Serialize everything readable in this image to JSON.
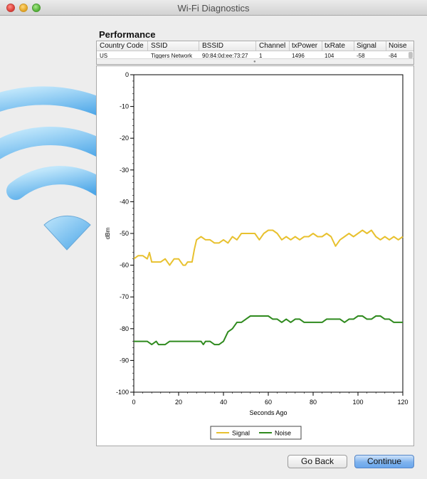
{
  "window": {
    "title": "Wi-Fi Diagnostics"
  },
  "icons": {
    "close": "close-window-icon",
    "minimize": "minimize-window-icon",
    "zoom": "zoom-window-icon",
    "logo": "wifi-icon"
  },
  "section": {
    "title": "Performance"
  },
  "table": {
    "columns": [
      "Country Code",
      "SSID",
      "BSSID",
      "Channel",
      "txPower",
      "txRate",
      "Signal",
      "Noise"
    ],
    "rows": [
      [
        "US",
        "Tiggers Network",
        "90:84:0d:ee:73:27",
        "1",
        "1496",
        "104",
        "-58",
        "-84"
      ]
    ]
  },
  "chart_data": {
    "type": "line",
    "xlabel": "Seconds Ago",
    "ylabel": "dBm",
    "xlim": [
      0,
      120
    ],
    "ylim": [
      -100,
      0
    ],
    "xticks": [
      "0",
      "20",
      "40",
      "60",
      "80",
      "100",
      "120"
    ],
    "yticks": [
      "0",
      "-10",
      "-20",
      "-30",
      "-40",
      "-50",
      "-60",
      "-70",
      "-80",
      "-90",
      "-100"
    ],
    "legend": "bottom-center",
    "series": [
      {
        "name": "Signal",
        "color": "#e8c12f",
        "x": [
          0,
          2,
          4,
          6,
          7,
          8,
          10,
          12,
          14,
          16,
          17,
          18,
          20,
          22,
          23,
          24,
          26,
          27,
          28,
          30,
          32,
          34,
          36,
          38,
          40,
          42,
          44,
          46,
          48,
          50,
          52,
          54,
          56,
          58,
          60,
          62,
          64,
          66,
          68,
          70,
          72,
          74,
          76,
          78,
          80,
          82,
          84,
          86,
          88,
          90,
          92,
          94,
          96,
          98,
          100,
          102,
          104,
          106,
          108,
          110,
          112,
          114,
          116,
          118,
          120
        ],
        "y": [
          -58,
          -57,
          -57,
          -58,
          -56,
          -59,
          -59,
          -59,
          -58,
          -60,
          -59,
          -58,
          -58,
          -60,
          -60,
          -59,
          -59,
          -55,
          -52,
          -51,
          -52,
          -52,
          -53,
          -53,
          -52,
          -53,
          -51,
          -52,
          -50,
          -50,
          -50,
          -50,
          -52,
          -50,
          -49,
          -49,
          -50,
          -52,
          -51,
          -52,
          -51,
          -52,
          -51,
          -51,
          -50,
          -51,
          -51,
          -50,
          -51,
          -54,
          -52,
          -51,
          -50,
          -51,
          -50,
          -49,
          -50,
          -49,
          -51,
          -52,
          -51,
          -52,
          -51,
          -52,
          -51
        ]
      },
      {
        "name": "Noise",
        "color": "#2f8a1e",
        "x": [
          0,
          2,
          4,
          6,
          8,
          10,
          11,
          12,
          14,
          16,
          18,
          20,
          22,
          24,
          26,
          28,
          30,
          31,
          32,
          34,
          36,
          38,
          40,
          42,
          44,
          46,
          48,
          50,
          52,
          54,
          56,
          58,
          60,
          62,
          64,
          66,
          68,
          70,
          72,
          74,
          76,
          78,
          80,
          82,
          84,
          86,
          88,
          90,
          92,
          94,
          96,
          98,
          100,
          102,
          104,
          106,
          108,
          110,
          112,
          114,
          116,
          118,
          120
        ],
        "y": [
          -84,
          -84,
          -84,
          -84,
          -85,
          -84,
          -85,
          -85,
          -85,
          -84,
          -84,
          -84,
          -84,
          -84,
          -84,
          -84,
          -84,
          -85,
          -84,
          -84,
          -85,
          -85,
          -84,
          -81,
          -80,
          -78,
          -78,
          -77,
          -76,
          -76,
          -76,
          -76,
          -76,
          -77,
          -77,
          -78,
          -77,
          -78,
          -77,
          -77,
          -78,
          -78,
          -78,
          -78,
          -78,
          -77,
          -77,
          -77,
          -77,
          -78,
          -77,
          -77,
          -76,
          -76,
          -77,
          -77,
          -76,
          -76,
          -77,
          -77,
          -78,
          -78,
          -78
        ]
      }
    ]
  },
  "buttons": {
    "back": "Go Back",
    "continue": "Continue"
  }
}
